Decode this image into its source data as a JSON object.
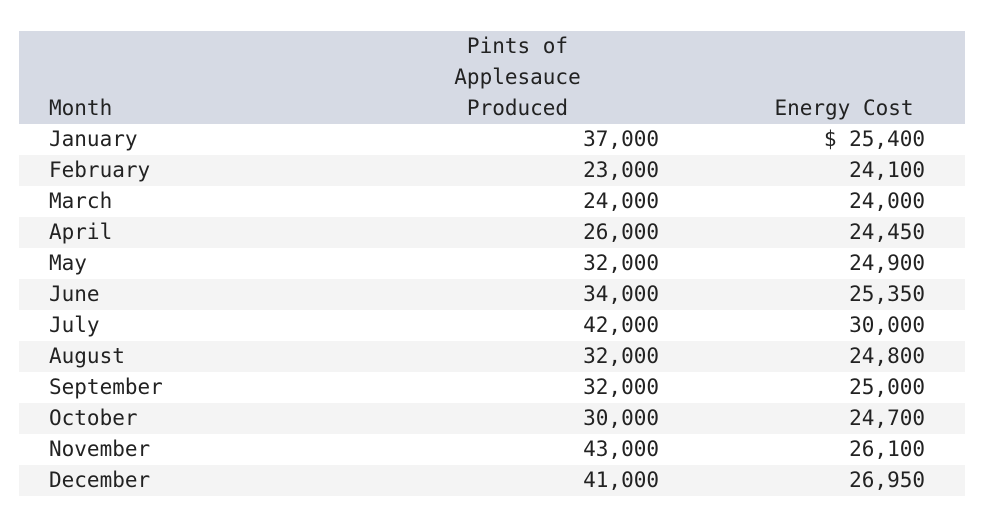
{
  "table": {
    "headers": {
      "month": "Month",
      "pints_lines": [
        "Pints of",
        "Applesauce",
        "Produced"
      ],
      "energy": "Energy Cost"
    },
    "rows": [
      {
        "month": "January",
        "pints": "37,000",
        "energy": "$ 25,400"
      },
      {
        "month": "February",
        "pints": "23,000",
        "energy": "24,100"
      },
      {
        "month": "March",
        "pints": "24,000",
        "energy": "24,000"
      },
      {
        "month": "April",
        "pints": "26,000",
        "energy": "24,450"
      },
      {
        "month": "May",
        "pints": "32,000",
        "energy": "24,900"
      },
      {
        "month": "June",
        "pints": "34,000",
        "energy": "25,350"
      },
      {
        "month": "July",
        "pints": "42,000",
        "energy": "30,000"
      },
      {
        "month": "August",
        "pints": "32,000",
        "energy": "24,800"
      },
      {
        "month": "September",
        "pints": "32,000",
        "energy": "25,000"
      },
      {
        "month": "October",
        "pints": "30,000",
        "energy": "24,700"
      },
      {
        "month": "November",
        "pints": "43,000",
        "energy": "26,100"
      },
      {
        "month": "December",
        "pints": "41,000",
        "energy": "26,950"
      }
    ]
  }
}
